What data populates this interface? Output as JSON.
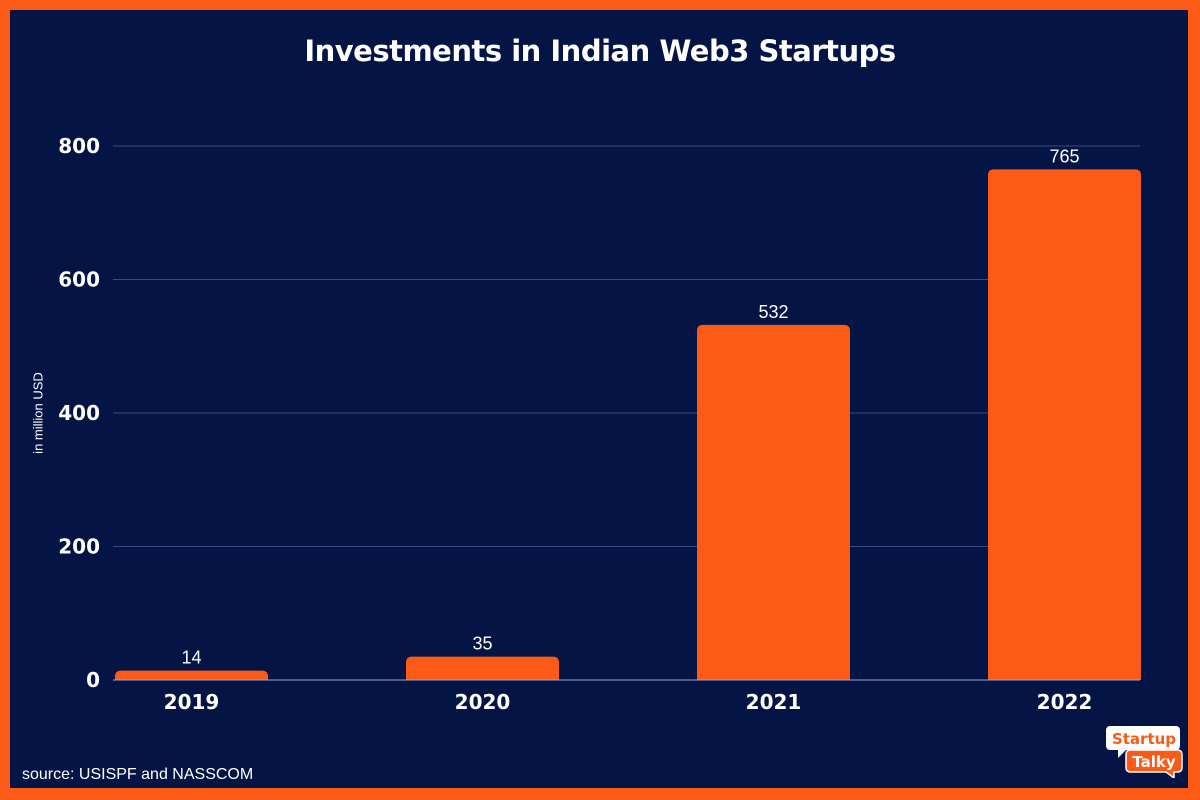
{
  "chart_data": {
    "type": "bar",
    "title": "Investments in Indian Web3 Startups",
    "ylabel": "in million USD",
    "xlabel": "",
    "categories": [
      "2019",
      "2020",
      "2021",
      "2022"
    ],
    "values": [
      14,
      35,
      532,
      765
    ],
    "data_labels": [
      "14",
      "35",
      "532",
      "765"
    ],
    "ylim": [
      0,
      800
    ],
    "yticks": [
      0,
      200,
      400,
      600,
      800
    ],
    "grid": true,
    "bar_color": "#fb5b17",
    "background_color": "#041445"
  },
  "source": "source: USISPF and NASSCOM",
  "logo": {
    "line1": "Startup",
    "line2": "Talky"
  }
}
